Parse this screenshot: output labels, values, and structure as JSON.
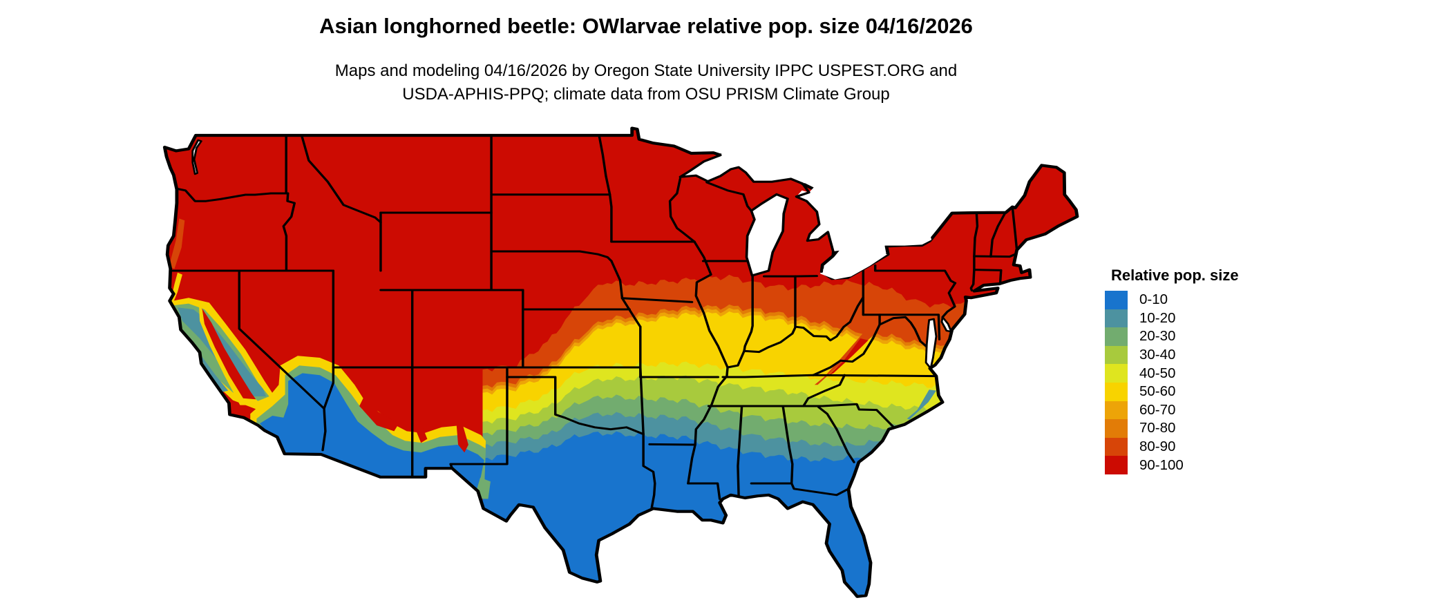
{
  "title": "Asian longhorned beetle: OWlarvae relative pop. size 04/16/2026",
  "subtitle": {
    "line1": "Maps and modeling 04/16/2026 by Oregon State University IPPC USPEST.ORG and",
    "line2": "USDA-APHIS-PPQ; climate data from OSU PRISM Climate Group"
  },
  "legend": {
    "title": "Relative pop. size",
    "items": [
      {
        "label": "0-10",
        "color": "#1874CD"
      },
      {
        "label": "10-20",
        "color": "#4D92A0"
      },
      {
        "label": "20-30",
        "color": "#72AC6F"
      },
      {
        "label": "30-40",
        "color": "#A8CA3D"
      },
      {
        "label": "40-50",
        "color": "#DFE51F"
      },
      {
        "label": "50-60",
        "color": "#F8D300"
      },
      {
        "label": "60-70",
        "color": "#EDA408"
      },
      {
        "label": "70-80",
        "color": "#E27C07"
      },
      {
        "label": "80-90",
        "color": "#D74508"
      },
      {
        "label": "90-100",
        "color": "#CC0B02"
      }
    ]
  },
  "map": {
    "type": "choropleth raster map",
    "region": "Contiguous United States",
    "metric": "Relative pop. size (0-100, 10 bins)",
    "border_color": "#000000",
    "water_background_color": "#FFFFFF"
  }
}
